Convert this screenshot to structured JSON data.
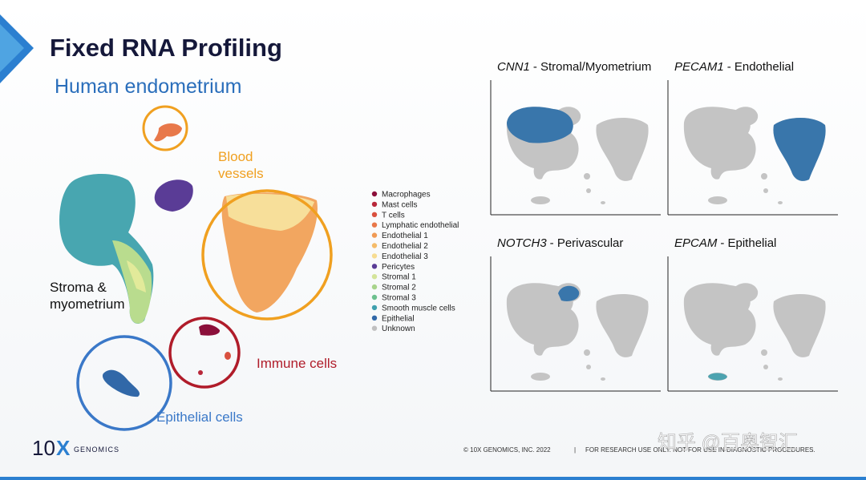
{
  "title": "Fixed RNA Profiling",
  "subtitle": "Human endometrium",
  "cluster_labels": {
    "blood_vessels": [
      "Blood",
      "vessels"
    ],
    "stroma": [
      "Stroma &",
      "myometrium"
    ],
    "immune": "Immune cells",
    "epithelial": "Epithelial cells"
  },
  "legend": [
    {
      "name": "Macrophages",
      "color": "#8b0f3a"
    },
    {
      "name": "Mast cells",
      "color": "#b8283a"
    },
    {
      "name": "T cells",
      "color": "#d9503f"
    },
    {
      "name": "Lymphatic endothelial",
      "color": "#e8784a"
    },
    {
      "name": "Endothelial 1",
      "color": "#f09a55"
    },
    {
      "name": "Endothelial 2",
      "color": "#f5bb6a"
    },
    {
      "name": "Endothelial 3",
      "color": "#f7dc92"
    },
    {
      "name": "Pericytes",
      "color": "#5a3c96"
    },
    {
      "name": "Stromal 1",
      "color": "#d4e49a"
    },
    {
      "name": "Stromal 2",
      "color": "#a8d48c"
    },
    {
      "name": "Stromal 3",
      "color": "#6cc08e"
    },
    {
      "name": "Smooth muscle cells",
      "color": "#3fa0ae"
    },
    {
      "name": "Epithelial",
      "color": "#3168a8"
    },
    {
      "name": "Unknown",
      "color": "#c0c0c0"
    }
  ],
  "panels": [
    {
      "gene": "CNN1",
      "description": "- Stromal/Myometrium"
    },
    {
      "gene": "PECAM1",
      "description": "- Endothelial"
    },
    {
      "gene": "NOTCH3",
      "description": "- Perivascular"
    },
    {
      "gene": "EPCAM",
      "description": "- Epithelial"
    }
  ],
  "footer": {
    "logo": [
      "10",
      "X",
      "GENOMICS"
    ],
    "copyright": "© 10X GENOMICS, INC. 2022",
    "separator": "|",
    "disclaimer": "FOR RESEARCH USE ONLY. NOT FOR USE IN DIAGNOSTIC PROCEDURES.",
    "watermark": "知乎 @百奥智汇"
  }
}
